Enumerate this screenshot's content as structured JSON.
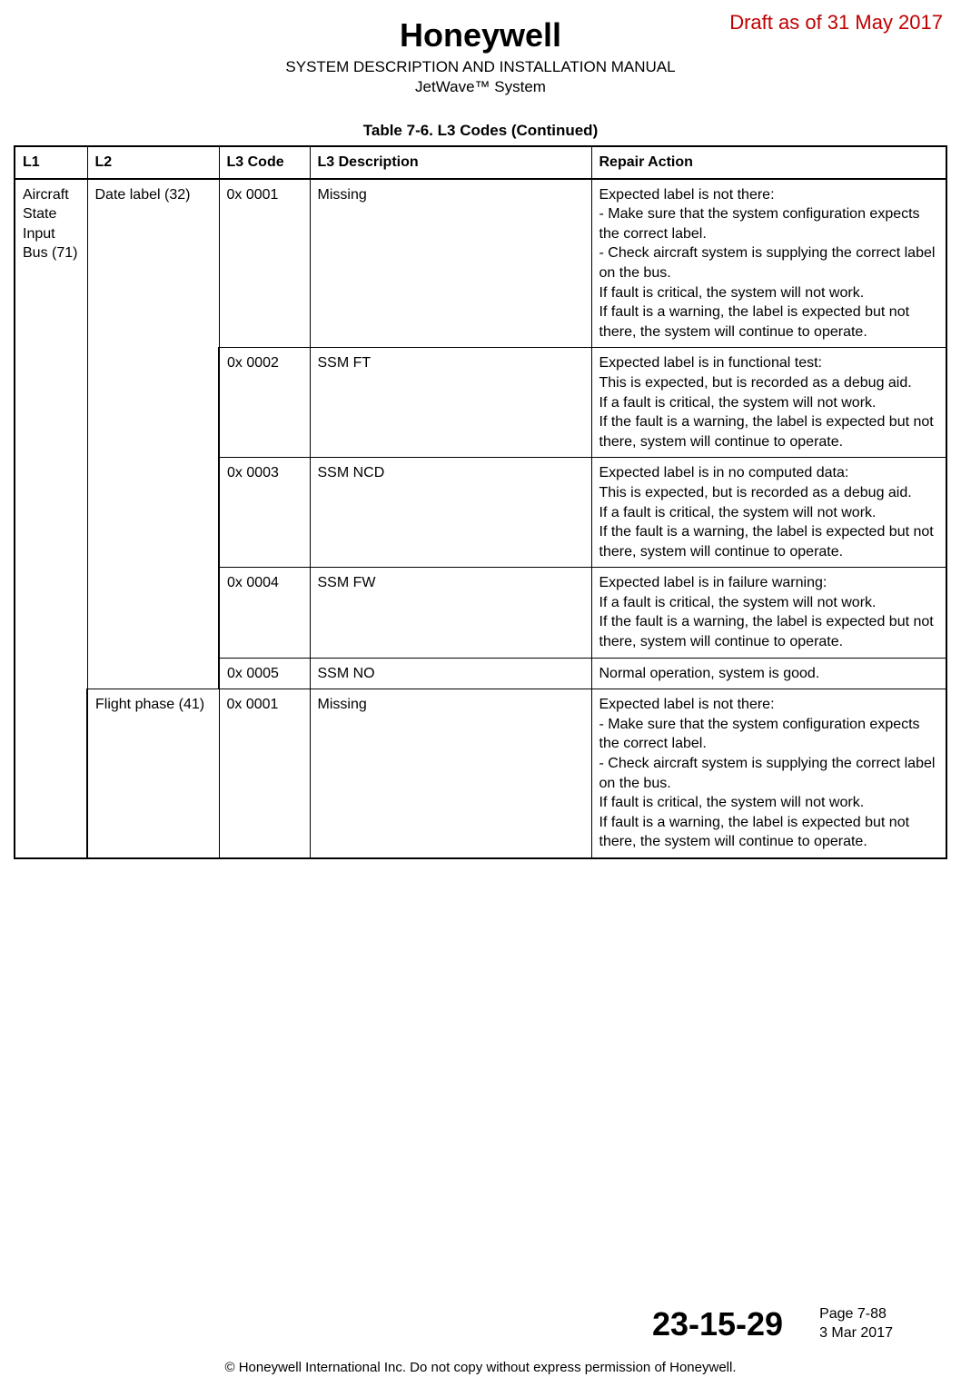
{
  "draft_stamp": "Draft as of 31 May 2017",
  "logo_text": "Honeywell",
  "header": {
    "manual_title": "SYSTEM DESCRIPTION AND INSTALLATION MANUAL",
    "system_name": "JetWave™ System"
  },
  "table": {
    "caption": "Table 7-6.   L3 Codes  (Continued)",
    "columns": {
      "l1": "L1",
      "l2": "L2",
      "l3code": "L3 Code",
      "l3desc": "L3 Description",
      "repair": "Repair Action"
    },
    "rows": [
      {
        "l1": "Aircraft State Input Bus (71)",
        "l2": "Date label (32)",
        "l3code": "0x 0001",
        "l3desc": "Missing",
        "repair": "Expected label is not there:\n- Make sure that the system configuration expects the correct label.\n- Check aircraft system is supplying the correct label on the bus.\nIf fault is critical, the system will not work.\nIf fault is a warning, the label is expected but not there, the system will continue to operate."
      },
      {
        "l3code": "0x 0002",
        "l3desc": "SSM FT",
        "repair": "Expected label is in functional test:\nThis is expected, but is recorded as a debug aid.\nIf a fault is critical, the system will not work.\nIf the fault is a warning, the label is expected but not there, system will continue to operate."
      },
      {
        "l3code": "0x 0003",
        "l3desc": "SSM NCD",
        "repair": "Expected label is in no computed data:\nThis is expected, but is recorded as a debug aid.\nIf a fault is critical, the system will not work.\nIf the fault is a warning, the label is expected but not there, system will continue to operate."
      },
      {
        "l3code": "0x 0004",
        "l3desc": "SSM FW",
        "repair": "Expected label is in failure warning:\nIf a fault is critical, the system will not work.\nIf the fault is a warning, the label is expected but not there, system will continue to operate."
      },
      {
        "l3code": "0x 0005",
        "l3desc": "SSM NO",
        "repair": "Normal operation, system is good."
      },
      {
        "l2": "Flight phase (41)",
        "l3code": "0x 0001",
        "l3desc": "Missing",
        "repair": "Expected label is not there:\n- Make sure that the system configuration expects the correct label.\n- Check aircraft system is supplying the correct label on the bus.\nIf fault is critical, the system will not work.\nIf fault is a warning, the label is expected but not there, the system will continue to operate."
      }
    ]
  },
  "footer": {
    "doc_number": "23-15-29",
    "page_label": "Page 7-88",
    "date": "3 Mar 2017",
    "copyright": "© Honeywell International Inc. Do not copy without express permission of Honeywell."
  },
  "colors": {
    "draft_red": "#c00000",
    "text": "#000000",
    "background": "#ffffff"
  }
}
